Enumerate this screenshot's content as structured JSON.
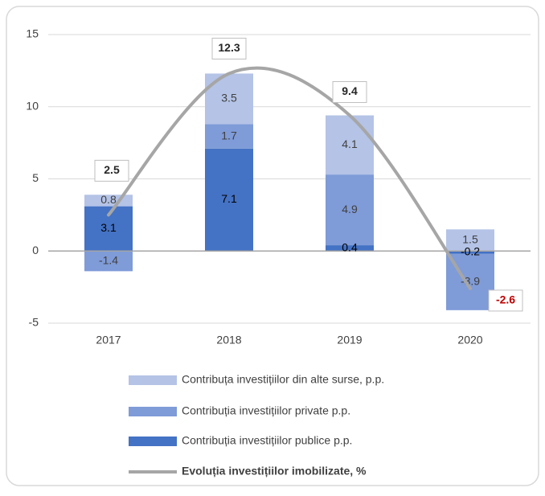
{
  "chart_data": {
    "type": "bar",
    "stacked": true,
    "categories": [
      "2017",
      "2018",
      "2019",
      "2020"
    ],
    "series": [
      {
        "name": "Contribuția investițiilor publice p.p.",
        "color": "#4472c4",
        "values": [
          3.1,
          7.1,
          0.4,
          -0.2
        ]
      },
      {
        "name": "Contribuția investițiilor private p.p.",
        "color": "#7f9bd8",
        "values": [
          -1.4,
          1.7,
          4.9,
          -3.9
        ]
      },
      {
        "name": "Contribuța investițiilor din alte surse, p.p.",
        "color": "#b4c3e6",
        "values": [
          0.8,
          3.5,
          4.1,
          1.5
        ]
      },
      {
        "name": "Evoluția investițiilor imobilizate, %",
        "type": "line",
        "color": "#a6a6a6",
        "values": [
          2.5,
          12.3,
          9.4,
          -2.6
        ]
      }
    ],
    "ylim": [
      -5,
      15
    ],
    "yticks": [
      -5,
      0,
      5,
      10,
      15
    ],
    "grid": true,
    "legend": "bottom"
  }
}
